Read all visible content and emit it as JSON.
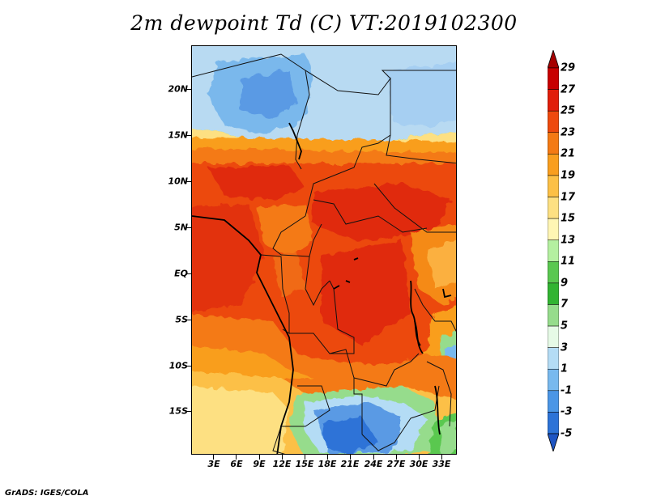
{
  "title": "2m dewpoint Td (C) VT:2019102300",
  "footer": "GrADS: IGES/COLA",
  "lat_labels": [
    "20N",
    "15N",
    "10N",
    "5N",
    "EQ",
    "5S",
    "10S",
    "15S"
  ],
  "lon_labels": [
    "3E",
    "6E",
    "9E",
    "12E",
    "15E",
    "18E",
    "21E",
    "24E",
    "27E",
    "30E",
    "33E"
  ],
  "colorbar": {
    "labels": [
      "29",
      "27",
      "25",
      "23",
      "21",
      "19",
      "17",
      "15",
      "13",
      "11",
      "9",
      "7",
      "5",
      "3",
      "1",
      "-1",
      "-3",
      "-5"
    ],
    "colors": [
      "#a50000",
      "#c80000",
      "#e11e0a",
      "#ee4a0e",
      "#f47a14",
      "#f99e1e",
      "#fcc046",
      "#fde082",
      "#fff6b4",
      "#b4f0a0",
      "#5ac850",
      "#32b432",
      "#96dc8c",
      "#e6fae6",
      "#b4dcf5",
      "#78b9ee",
      "#4b96e6",
      "#2d73d7",
      "#1e55c3"
    ]
  }
}
